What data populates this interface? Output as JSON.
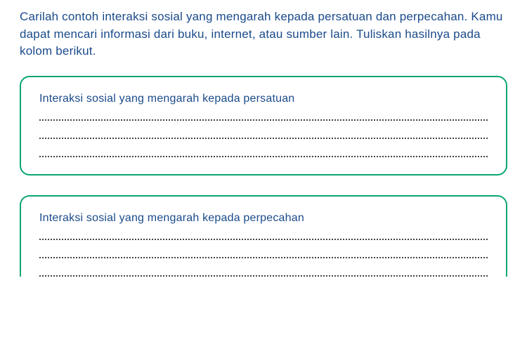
{
  "instruction_text": "Carilah contoh interaksi sosial yang mengarah kepada persatuan dan perpecahan. Kamu dapat mencari informasi dari buku, internet, atau sumber lain. Tuliskan hasilnya pada kolom berikut.",
  "instruction_color": "#1a4a8a",
  "box1": {
    "title": "Interaksi sosial yang mengarah kepada persatuan",
    "title_color": "#1a4a8a",
    "border_color": "#0aa86f",
    "line_count": 3
  },
  "box2": {
    "title": "Interaksi sosial yang mengarah kepada perpecahan",
    "title_color": "#1a4a8a",
    "border_color": "#0aa86f",
    "line_count": 3
  },
  "dotted_line_color": "#444444"
}
